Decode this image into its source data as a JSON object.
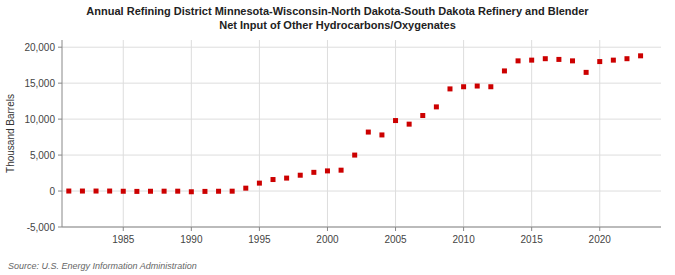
{
  "chart_data": {
    "type": "scatter",
    "title": "Annual Refining District Minnesota-Wisconsin-North Dakota-South Dakota Refinery and Blender\nNet Input of Other Hydrocarbons/Oxygenates",
    "ylabel": "Thousand Barrels",
    "source": "Source: U.S. Energy Information Administration",
    "x": [
      1981,
      1982,
      1983,
      1984,
      1985,
      1986,
      1987,
      1988,
      1989,
      1990,
      1991,
      1992,
      1993,
      1994,
      1995,
      1996,
      1997,
      1998,
      1999,
      2000,
      2001,
      2002,
      2003,
      2004,
      2005,
      2006,
      2007,
      2008,
      2009,
      2010,
      2011,
      2012,
      2013,
      2014,
      2015,
      2016,
      2017,
      2018,
      2019,
      2020,
      2021,
      2022,
      2023
    ],
    "values": [
      0,
      0,
      0,
      0,
      -30,
      -50,
      -30,
      -20,
      -20,
      -100,
      -50,
      -30,
      -20,
      400,
      1100,
      1600,
      1800,
      2200,
      2600,
      2800,
      2900,
      5000,
      8200,
      7800,
      9800,
      9300,
      10500,
      11700,
      14200,
      14500,
      14600,
      14500,
      16700,
      18100,
      18200,
      18400,
      18300,
      18100,
      16500,
      18000,
      18200,
      18400,
      18800
    ],
    "color": "#cc0000",
    "marker": "square",
    "xlim": [
      1980.5,
      2024.5
    ],
    "xticks": [
      1985,
      1990,
      1995,
      2000,
      2005,
      2010,
      2015,
      2020
    ],
    "ylim": [
      -5000,
      21000
    ],
    "yticks": [
      {
        "value": -5000,
        "label": "-5,000"
      },
      0,
      {
        "value": 5000,
        "label": "5,000"
      },
      {
        "value": 10000,
        "label": "10,000"
      },
      {
        "value": 15000,
        "label": "15,000"
      },
      {
        "value": 20000,
        "label": "20,000"
      }
    ],
    "grid": true
  }
}
